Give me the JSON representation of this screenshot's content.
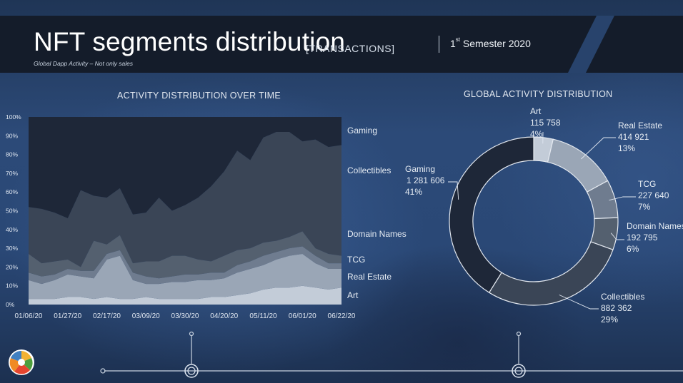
{
  "header": {
    "title": "NFT segments distribution",
    "tag": "[TRANSACTIONS]",
    "subtitle": "Global Dapp Activity – Not only sales",
    "semester_ordinal": "1",
    "semester_sup": "st",
    "semester_rest": "Semester 2020"
  },
  "colors": {
    "header_band": "#141c2a",
    "background": "#2a4876",
    "art": "#c3ccd8",
    "real_estate": "#9aa6b6",
    "tcg": "#6f7c8f",
    "domain_names": "#54606f",
    "collectibles": "#3a4556",
    "gaming": "#1e2738"
  },
  "chart_data": [
    {
      "type": "area",
      "stacked": "percent",
      "title": "ACTIVITY DISTRIBUTION OVER TIME",
      "x": [
        "01/06/20",
        "01/13/20",
        "01/20/20",
        "01/27/20",
        "02/03/20",
        "02/10/20",
        "02/17/20",
        "02/24/20",
        "03/02/20",
        "03/09/20",
        "03/16/20",
        "03/23/20",
        "03/30/20",
        "04/06/20",
        "04/13/20",
        "04/20/20",
        "04/27/20",
        "05/04/20",
        "05/11/20",
        "05/18/20",
        "05/25/20",
        "06/01/20",
        "06/08/20",
        "06/15/20",
        "06/22/20"
      ],
      "xticks": [
        "01/06/20",
        "01/27/20",
        "02/17/20",
        "03/09/20",
        "03/30/20",
        "04/20/20",
        "05/11/20",
        "06/01/20",
        "06/22/20"
      ],
      "yticks": [
        "0%",
        "10%",
        "20%",
        "30%",
        "40%",
        "50%",
        "60%",
        "70%",
        "80%",
        "90%",
        "100%"
      ],
      "ylim": [
        0,
        100
      ],
      "grid": false,
      "legend": "right",
      "series": [
        {
          "name": "Art",
          "values": [
            3,
            3,
            3,
            4,
            4,
            3,
            4,
            3,
            3,
            4,
            3,
            3,
            3,
            3,
            4,
            4,
            5,
            6,
            8,
            9,
            9,
            10,
            9,
            8,
            9
          ]
        },
        {
          "name": "Real Estate",
          "values": [
            10,
            8,
            10,
            12,
            11,
            11,
            20,
            23,
            10,
            7,
            8,
            9,
            9,
            10,
            9,
            10,
            12,
            13,
            13,
            15,
            17,
            17,
            13,
            11,
            10
          ]
        },
        {
          "name": "TCG",
          "values": [
            4,
            4,
            3,
            3,
            3,
            4,
            3,
            3,
            4,
            4,
            3,
            3,
            4,
            3,
            4,
            3,
            4,
            4,
            5,
            4,
            4,
            4,
            4,
            3,
            3
          ]
        },
        {
          "name": "Domain Names",
          "values": [
            10,
            7,
            7,
            5,
            2,
            16,
            5,
            8,
            5,
            8,
            9,
            11,
            10,
            8,
            6,
            9,
            8,
            7,
            7,
            6,
            6,
            8,
            4,
            5,
            4
          ]
        },
        {
          "name": "Collectibles",
          "values": [
            25,
            29,
            26,
            22,
            41,
            24,
            25,
            25,
            26,
            26,
            34,
            24,
            27,
            33,
            40,
            45,
            53,
            47,
            56,
            58,
            56,
            48,
            58,
            57,
            59
          ]
        },
        {
          "name": "Gaming",
          "values": [
            48,
            49,
            51,
            54,
            39,
            42,
            43,
            38,
            52,
            51,
            43,
            50,
            47,
            43,
            37,
            29,
            18,
            23,
            11,
            8,
            8,
            13,
            12,
            16,
            15
          ]
        }
      ]
    },
    {
      "type": "pie",
      "donut": true,
      "title": "GLOBAL ACTIVITY DISTRIBUTION",
      "slices": [
        {
          "name": "Art",
          "value": 115758,
          "value_label": "115 758",
          "percent": "4%"
        },
        {
          "name": "Real Estate",
          "value": 414921,
          "value_label": "414 921",
          "percent": "13%"
        },
        {
          "name": "TCG",
          "value": 227640,
          "value_label": "227 640",
          "percent": "7%"
        },
        {
          "name": "Domain Names",
          "value": 192795,
          "value_label": "192 795",
          "percent": "6%"
        },
        {
          "name": "Collectibles",
          "value": 882362,
          "value_label": "882 362",
          "percent": "29%"
        },
        {
          "name": "Gaming",
          "value": 1281606,
          "value_label": "1 281 606",
          "percent": "41%"
        }
      ]
    }
  ]
}
